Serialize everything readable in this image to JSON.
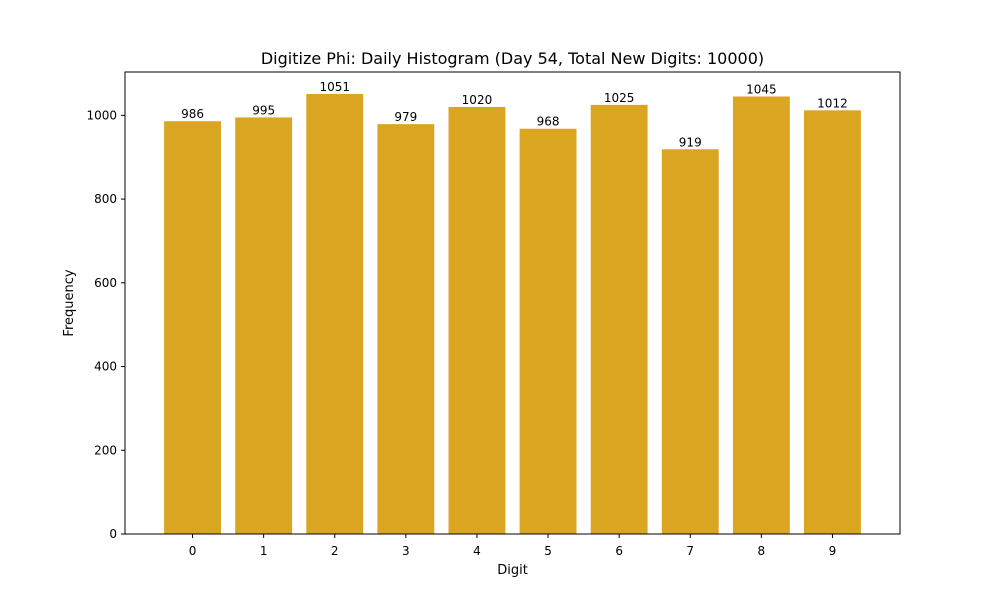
{
  "chart_data": {
    "type": "bar",
    "title": "Digitize Phi: Daily Histogram (Day 54, Total New Digits: 10000)",
    "xlabel": "Digit",
    "ylabel": "Frequency",
    "categories": [
      "0",
      "1",
      "2",
      "3",
      "4",
      "5",
      "6",
      "7",
      "8",
      "9"
    ],
    "values": [
      986,
      995,
      1051,
      979,
      1020,
      968,
      1025,
      919,
      1045,
      1012
    ],
    "data_labels": [
      "986",
      "995",
      "1051",
      "979",
      "1020",
      "968",
      "1025",
      "919",
      "1045",
      "1012"
    ],
    "ylim": [
      0,
      1103.55
    ],
    "yticks": [
      0,
      200,
      400,
      600,
      800,
      1000
    ],
    "ytick_labels": [
      "0",
      "200",
      "400",
      "600",
      "800",
      "1000"
    ],
    "bar_color": "#DAA520",
    "grid": false,
    "legend": "none"
  }
}
